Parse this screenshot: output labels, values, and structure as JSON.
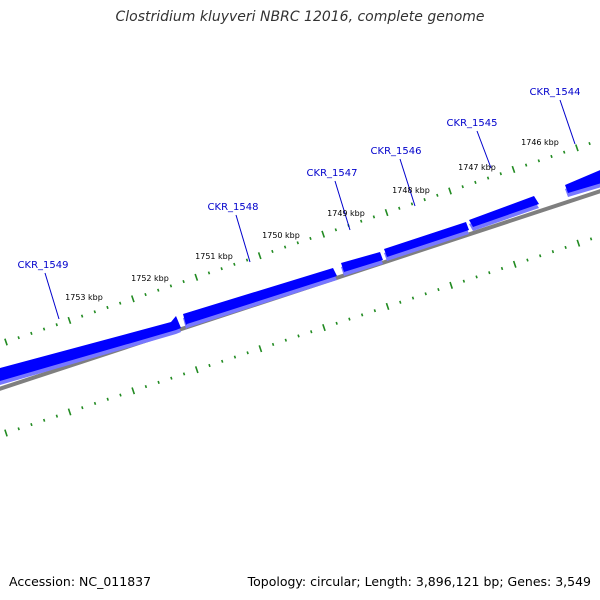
{
  "title": "Clostridium kluyveri NBRC 12016, complete genome",
  "footer": {
    "accession": "Accession: NC_011837",
    "summary": "Topology: circular; Length: 3,896,121 bp; Genes: 3,549"
  },
  "colors": {
    "gene_fill": "#0000ff",
    "gene_shadow": "#7777ff",
    "backbone": "#7f7f7f",
    "ticks": "#228b22",
    "gene_label": "#0000cc"
  },
  "scale_labels": [
    "1753 kbp",
    "1752 kbp",
    "1751 kbp",
    "1750 kbp",
    "1749 kbp",
    "1748 kbp",
    "1747 kbp",
    "1746 kbp"
  ],
  "genes": [
    {
      "name": "CKR_1549",
      "strand": "-"
    },
    {
      "name": "CKR_1548",
      "strand": "-"
    },
    {
      "name": "CKR_1547",
      "strand": "-"
    },
    {
      "name": "CKR_1546",
      "strand": "-"
    },
    {
      "name": "CKR_1545",
      "strand": "-"
    },
    {
      "name": "CKR_1544",
      "strand": "-"
    }
  ]
}
